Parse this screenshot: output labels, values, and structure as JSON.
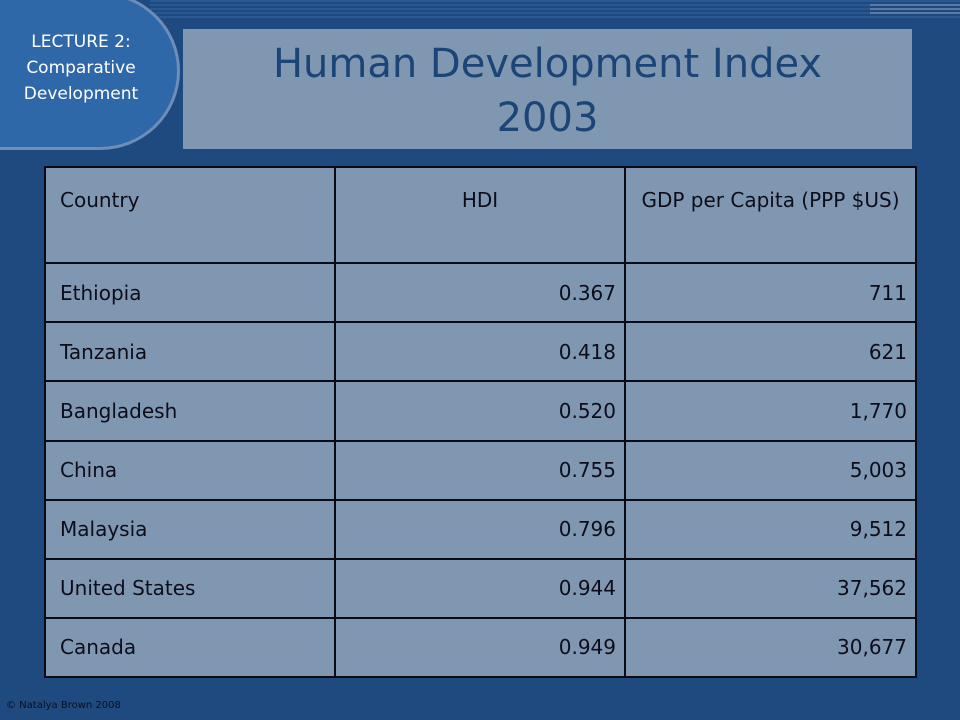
{
  "badge": {
    "line1": "LECTURE 2:",
    "line2": "Comparative",
    "line3": "Development"
  },
  "title": {
    "line1": "Human Development Index",
    "line2": "2003"
  },
  "table": {
    "headers": [
      "Country",
      "HDI",
      "GDP per Capita (PPP $US)"
    ],
    "rows": [
      [
        "Ethiopia",
        "0.367",
        "711"
      ],
      [
        "Tanzania",
        "0.418",
        "621"
      ],
      [
        "Bangladesh",
        "0.520",
        "1,770"
      ],
      [
        "China",
        "0.755",
        "5,003"
      ],
      [
        "Malaysia",
        "0.796",
        "9,512"
      ],
      [
        "United States",
        "0.944",
        "37,562"
      ],
      [
        "Canada",
        "0.949",
        "30,677"
      ]
    ]
  },
  "footer": {
    "copyright": "© Natalya Brown 2008"
  },
  "colors": {
    "background": "#1f4a80",
    "badge": "#2f68a9",
    "title_box": "#8097b2",
    "title_text": "#1b4577",
    "table_fill": "#8097b2"
  }
}
